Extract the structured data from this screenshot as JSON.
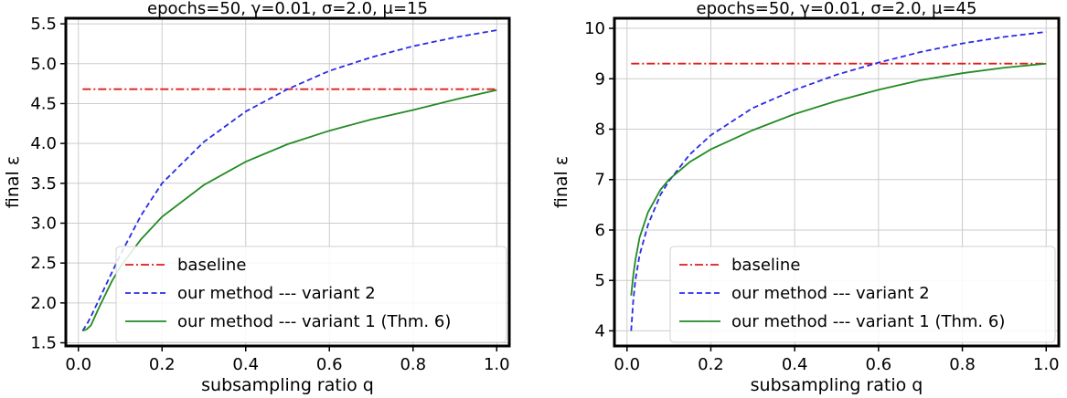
{
  "chart_data": [
    {
      "type": "line",
      "title": "epochs=50, γ=0.01, σ=2.0, μ=15",
      "xlabel": "subsampling ratio q",
      "ylabel": "final ε",
      "xlim": [
        -0.03,
        1.03
      ],
      "ylim": [
        1.46,
        5.57
      ],
      "x_ticks": [
        "0.0",
        "0.2",
        "0.4",
        "0.6",
        "0.8",
        "1.0"
      ],
      "y_ticks": [
        "1.5",
        "2.0",
        "2.5",
        "3.0",
        "3.5",
        "4.0",
        "4.5",
        "5.0",
        "5.5"
      ],
      "grid": true,
      "legend_position": "lower-right",
      "x": [
        0.01,
        0.02,
        0.03,
        0.05,
        0.08,
        0.1,
        0.15,
        0.2,
        0.3,
        0.4,
        0.5,
        0.6,
        0.7,
        0.8,
        0.9,
        1.0
      ],
      "series": [
        {
          "name": "baseline",
          "color": "#e41a1c",
          "style": "dashdot",
          "values": [
            4.68,
            4.68,
            4.68,
            4.68,
            4.68,
            4.68,
            4.68,
            4.68,
            4.68,
            4.68,
            4.68,
            4.68,
            4.68,
            4.68,
            4.68,
            4.68
          ]
        },
        {
          "name": "our method --- variant 2",
          "color": "#2a2ae8",
          "style": "dashed",
          "values": [
            1.65,
            1.73,
            1.83,
            2.05,
            2.38,
            2.6,
            3.1,
            3.5,
            4.02,
            4.4,
            4.68,
            4.91,
            5.08,
            5.22,
            5.33,
            5.42
          ]
        },
        {
          "name": "our method --- variant 1 (Thm. 6)",
          "color": "#228b22",
          "style": "solid",
          "values": [
            1.65,
            1.67,
            1.72,
            1.95,
            2.27,
            2.45,
            2.8,
            3.08,
            3.48,
            3.77,
            3.99,
            4.16,
            4.3,
            4.42,
            4.55,
            4.67
          ]
        }
      ]
    },
    {
      "type": "line",
      "title": "epochs=50, γ=0.01, σ=2.0, μ=45",
      "xlabel": "subsampling ratio q",
      "ylabel": "final ε",
      "xlim": [
        -0.03,
        1.03
      ],
      "ylim": [
        3.7,
        10.2
      ],
      "x_ticks": [
        "0.0",
        "0.2",
        "0.4",
        "0.6",
        "0.8",
        "1.0"
      ],
      "y_ticks": [
        "4",
        "5",
        "6",
        "7",
        "8",
        "9",
        "10"
      ],
      "grid": true,
      "legend_position": "lower-right",
      "x": [
        0.01,
        0.015,
        0.02,
        0.03,
        0.05,
        0.08,
        0.1,
        0.15,
        0.2,
        0.3,
        0.4,
        0.5,
        0.6,
        0.7,
        0.8,
        0.9,
        1.0
      ],
      "series": [
        {
          "name": "baseline",
          "color": "#e41a1c",
          "style": "dashdot",
          "values": [
            9.3,
            9.3,
            9.3,
            9.3,
            9.3,
            9.3,
            9.3,
            9.3,
            9.3,
            9.3,
            9.3,
            9.3,
            9.3,
            9.3,
            9.3,
            9.3,
            9.3
          ]
        },
        {
          "name": "our method --- variant 2",
          "color": "#2a2ae8",
          "style": "dashed",
          "values": [
            4.0,
            4.6,
            5.0,
            5.5,
            6.1,
            6.7,
            6.97,
            7.5,
            7.88,
            8.42,
            8.78,
            9.08,
            9.32,
            9.53,
            9.7,
            9.83,
            9.93
          ]
        },
        {
          "name": "our method --- variant 1 (Thm. 6)",
          "color": "#228b22",
          "style": "solid",
          "values": [
            4.7,
            5.1,
            5.4,
            5.85,
            6.35,
            6.8,
            7.0,
            7.35,
            7.6,
            7.98,
            8.3,
            8.56,
            8.78,
            8.97,
            9.11,
            9.22,
            9.3
          ]
        }
      ]
    }
  ]
}
